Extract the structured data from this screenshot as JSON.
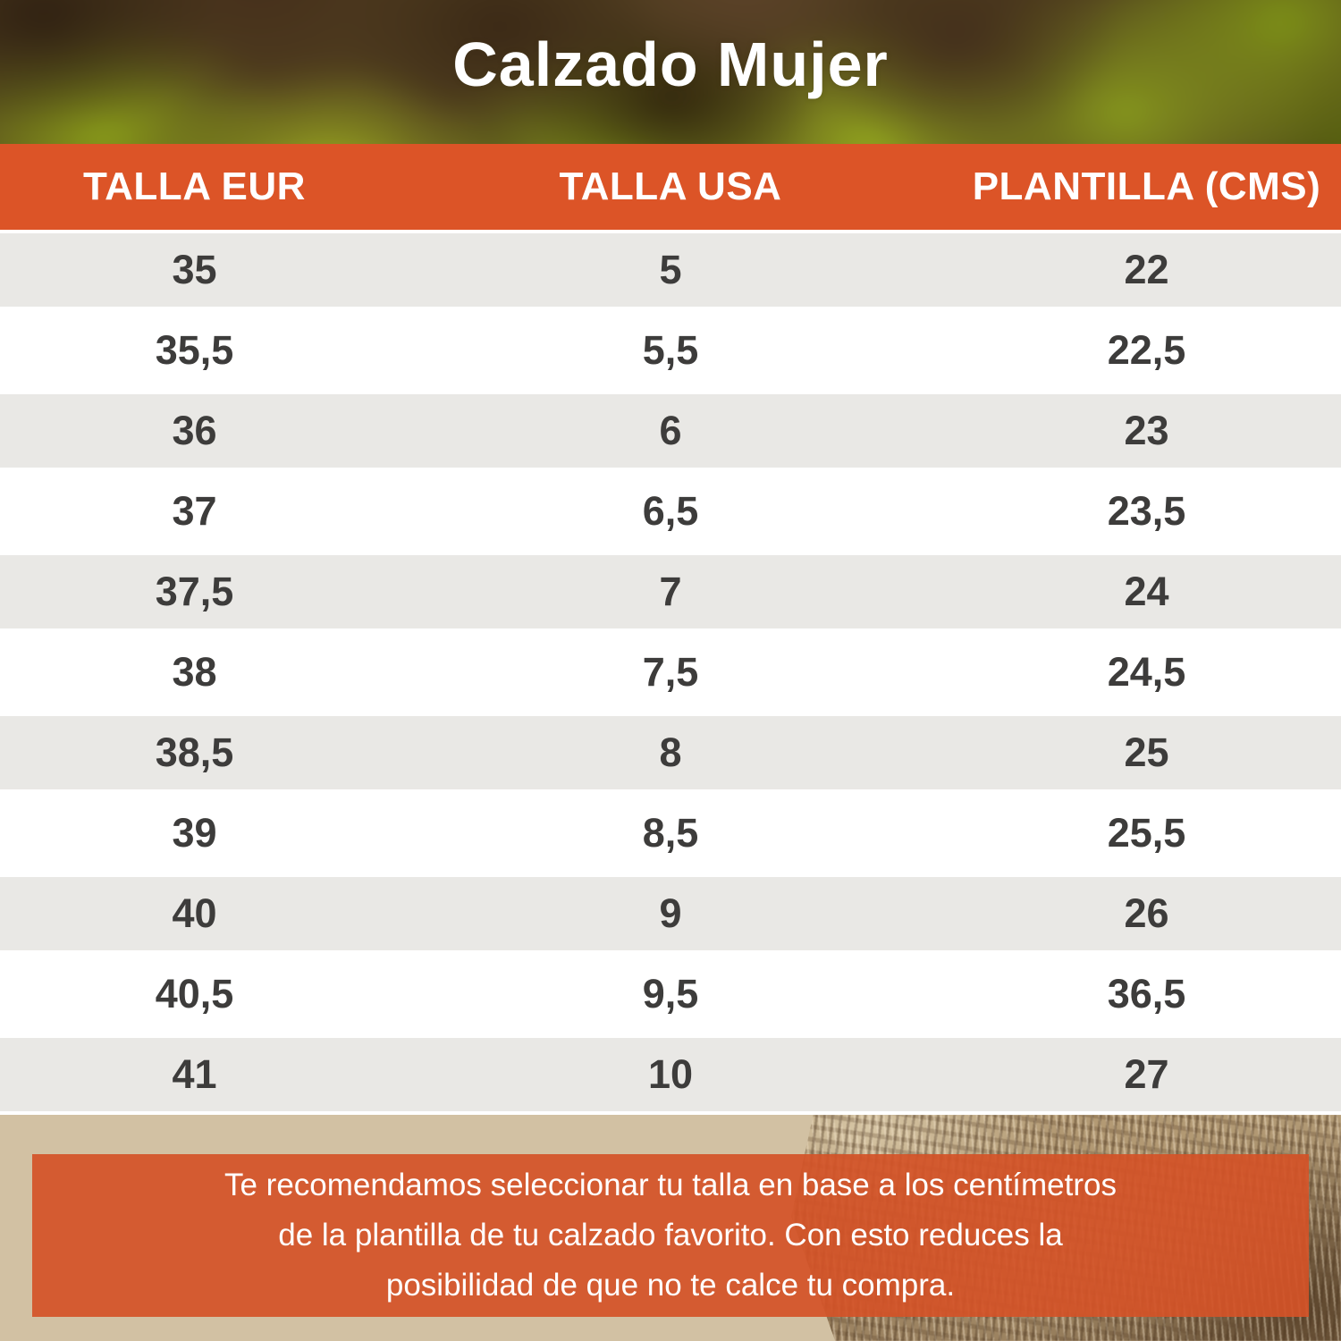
{
  "chart_data": {
    "type": "table",
    "title": "Calzado Mujer",
    "columns": [
      "TALLA EUR",
      "TALLA USA",
      "PLANTILLA (CMS)"
    ],
    "rows": [
      [
        "35",
        "5",
        "22"
      ],
      [
        "35,5",
        "5,5",
        "22,5"
      ],
      [
        "36",
        "6",
        "23"
      ],
      [
        "37",
        "6,5",
        "23,5"
      ],
      [
        "37,5",
        "7",
        "24"
      ],
      [
        "38",
        "7,5",
        "24,5"
      ],
      [
        "38,5",
        "8",
        "25"
      ],
      [
        "39",
        "8,5",
        "25,5"
      ],
      [
        "40",
        "9",
        "26"
      ],
      [
        "40,5",
        "9,5",
        "36,5"
      ],
      [
        "41",
        "10",
        "27"
      ]
    ]
  },
  "note": {
    "lines": [
      "Te recomendamos seleccionar tu talla en base a los centímetros",
      "de la plantilla de tu calzado favorito. Con esto reduces la",
      "posibilidad de que no te calce tu compra."
    ]
  },
  "colors": {
    "accent_orange": "#DC5427",
    "note_orange": "rgba(212,82,39,0.92)",
    "row_gray": "#E9E8E5",
    "text_dark": "#3D3C3B",
    "text_white": "#FFFFFF"
  }
}
